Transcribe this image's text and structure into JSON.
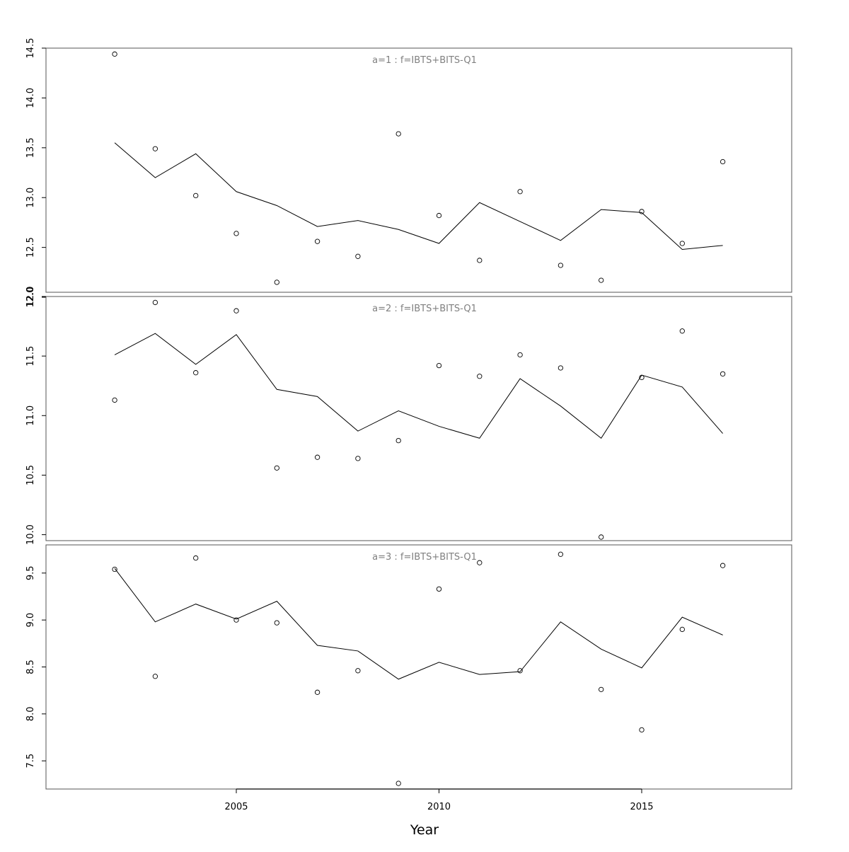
{
  "chart_data": [
    {
      "type": "line",
      "title": "a=1 : f=IBTS+BITS-Q1",
      "xlabel": "Year",
      "ylabel": "",
      "x": [
        2002,
        2003,
        2004,
        2005,
        2006,
        2007,
        2008,
        2009,
        2010,
        2011,
        2012,
        2013,
        2014,
        2015,
        2016,
        2017
      ],
      "ylim": [
        12.05,
        14.5
      ],
      "yticks": [
        "12.0",
        "12.5",
        "13.0",
        "13.5",
        "14.0",
        "14.5"
      ],
      "grid": false,
      "series": [
        {
          "style": "line",
          "values": [
            13.55,
            13.2,
            13.44,
            13.06,
            12.92,
            12.71,
            12.77,
            12.68,
            12.54,
            12.95,
            12.76,
            12.57,
            12.88,
            12.85,
            12.48,
            12.52
          ]
        },
        {
          "style": "points",
          "values": [
            14.44,
            13.49,
            13.02,
            12.64,
            12.15,
            12.56,
            12.41,
            13.64,
            12.82,
            12.37,
            13.06,
            12.32,
            12.17,
            12.86,
            12.54,
            13.36
          ]
        }
      ]
    },
    {
      "type": "line",
      "title": "a=2 : f=IBTS+BITS-Q1",
      "xlabel": "Year",
      "ylabel": "",
      "x": [
        2002,
        2003,
        2004,
        2005,
        2006,
        2007,
        2008,
        2009,
        2010,
        2011,
        2012,
        2013,
        2014,
        2015,
        2016,
        2017
      ],
      "ylim": [
        9.95,
        12.0
      ],
      "yticks": [
        "10.0",
        "10.5",
        "11.0",
        "11.5",
        "12.0"
      ],
      "grid": false,
      "series": [
        {
          "style": "line",
          "values": [
            11.51,
            11.69,
            11.43,
            11.68,
            11.22,
            11.16,
            10.87,
            11.04,
            10.91,
            10.81,
            11.31,
            11.08,
            10.81,
            11.34,
            11.24,
            10.85
          ]
        },
        {
          "style": "points",
          "values": [
            11.13,
            11.95,
            11.36,
            11.88,
            10.56,
            10.65,
            10.64,
            10.79,
            11.42,
            11.33,
            11.51,
            11.4,
            9.98,
            11.32,
            11.71,
            11.35
          ]
        }
      ]
    },
    {
      "type": "line",
      "title": "a=3 : f=IBTS+BITS-Q1",
      "xlabel": "Year",
      "ylabel": "",
      "x": [
        2002,
        2003,
        2004,
        2005,
        2006,
        2007,
        2008,
        2009,
        2010,
        2011,
        2012,
        2013,
        2014,
        2015,
        2016,
        2017
      ],
      "ylim": [
        7.2,
        9.8
      ],
      "yticks": [
        "7.5",
        "8.0",
        "8.5",
        "9.0",
        "9.5"
      ],
      "xticks": [
        "2005",
        "2010",
        "2015"
      ],
      "grid": false,
      "series": [
        {
          "style": "line",
          "values": [
            9.55,
            8.98,
            9.17,
            9.01,
            9.2,
            8.73,
            8.67,
            8.37,
            8.55,
            8.42,
            8.45,
            8.98,
            8.69,
            8.49,
            9.03,
            8.84
          ]
        },
        {
          "style": "points",
          "values": [
            9.54,
            8.4,
            9.66,
            9.0,
            8.97,
            8.23,
            8.46,
            7.26,
            9.33,
            9.61,
            8.46,
            9.7,
            8.26,
            7.83,
            8.9,
            9.58
          ]
        }
      ]
    }
  ]
}
